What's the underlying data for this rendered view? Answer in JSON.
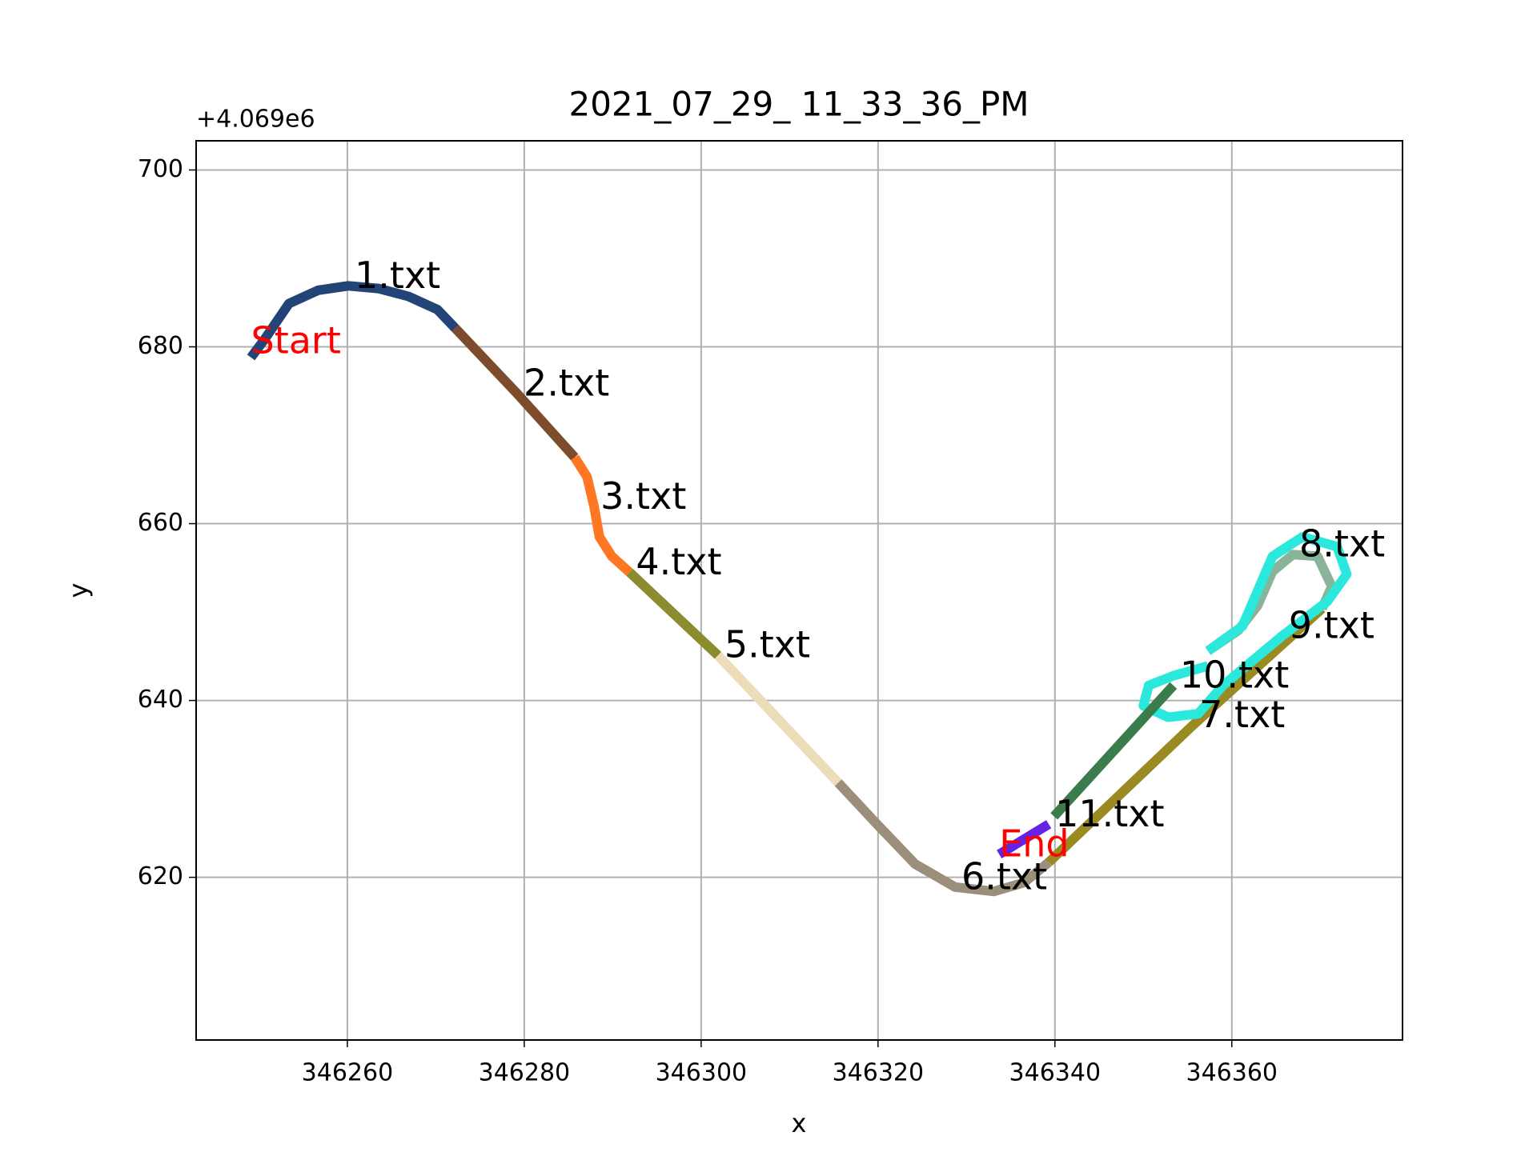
{
  "chart_data": {
    "type": "line",
    "title": "2021_07_29_ 11_33_36_PM",
    "x_label": "x",
    "y_label": "y",
    "y_offset_label": "+4.069e6",
    "start_label": "Start",
    "end_label": "End",
    "grid": true,
    "xlim": [
      346242.9,
      346379.3
    ],
    "ylim": [
      601.6,
      703.3
    ],
    "xticks": [
      346260,
      346280,
      346300,
      346320,
      346340,
      346360
    ],
    "yticks": [
      620,
      640,
      660,
      680,
      700
    ],
    "series": [
      {
        "name": "1.txt",
        "color": "#224477",
        "x": [
          346249.1,
          346250.6,
          346253.4,
          346256.7,
          346260.1,
          346263.5,
          346266.9,
          346270.2,
          346272.2
        ],
        "values": [
          678.8,
          680.8,
          684.9,
          686.4,
          686.9,
          686.6,
          685.7,
          684.2,
          682.1
        ]
      },
      {
        "name": "2.txt",
        "color": "#7d4c2c",
        "x": [
          346272.2,
          346279.2,
          346285.7
        ],
        "values": [
          682.1,
          674.7,
          667.5
        ]
      },
      {
        "name": "3.txt",
        "color": "#ff7722",
        "x": [
          346285.7,
          346287.1,
          346287.9,
          346288.5,
          346289.9,
          346291.9
        ],
        "values": [
          667.5,
          665.3,
          661.9,
          658.5,
          656.3,
          654.5
        ]
      },
      {
        "name": "4.txt",
        "color": "#8a8c2e",
        "x": [
          346291.9,
          346301.9
        ],
        "values": [
          654.5,
          645.1
        ]
      },
      {
        "name": "5.txt",
        "color": "#ecdcb8",
        "x": [
          346301.9,
          346315.5
        ],
        "values": [
          645.1,
          630.7
        ]
      },
      {
        "name": "6.txt",
        "color": "#9b8e7a",
        "x": [
          346315.5,
          346319.7,
          346324.2,
          346328.7,
          346333.1,
          346336.5,
          346339.3
        ],
        "values": [
          630.7,
          626.2,
          621.5,
          618.9,
          618.4,
          619.4,
          621.7
        ]
      },
      {
        "name": "7.txt",
        "color": "#9a8a22",
        "x": [
          346339.3,
          346355.6,
          346370.2
        ],
        "values": [
          621.7,
          637.2,
          650.4
        ]
      },
      {
        "name": "8.txt",
        "color": "#8ab49a",
        "x": [
          346370.2,
          346371.3,
          346369.7,
          346366.9,
          346364.6,
          346362.9,
          346360.7,
          346357.3
        ],
        "values": [
          650.4,
          652.9,
          656.3,
          656.5,
          654.6,
          650.7,
          647.9,
          645.6
        ]
      },
      {
        "name": "9.txt",
        "color": "#2ae8dc",
        "x": [
          346357.3,
          346361.2,
          346364.6,
          346368.0,
          346371.9,
          346373.0,
          346370.8,
          346365.7,
          346359.0,
          346356.2,
          346352.8,
          346350.0,
          346350.6,
          346353.4,
          346357.3
        ],
        "values": [
          645.6,
          648.4,
          656.3,
          658.5,
          657.4,
          654.3,
          651.2,
          647.3,
          641.7,
          638.5,
          638.1,
          639.4,
          641.7,
          642.8,
          643.9
        ]
      },
      {
        "name": "10.txt",
        "color": "#3b7c4c",
        "x": [
          346353.4,
          346339.9
        ],
        "values": [
          641.7,
          626.9
        ]
      },
      {
        "name": "11.txt",
        "color": "#6622e6",
        "x": [
          346339.3,
          346333.7
        ],
        "values": [
          626.0,
          622.6
        ]
      }
    ]
  }
}
